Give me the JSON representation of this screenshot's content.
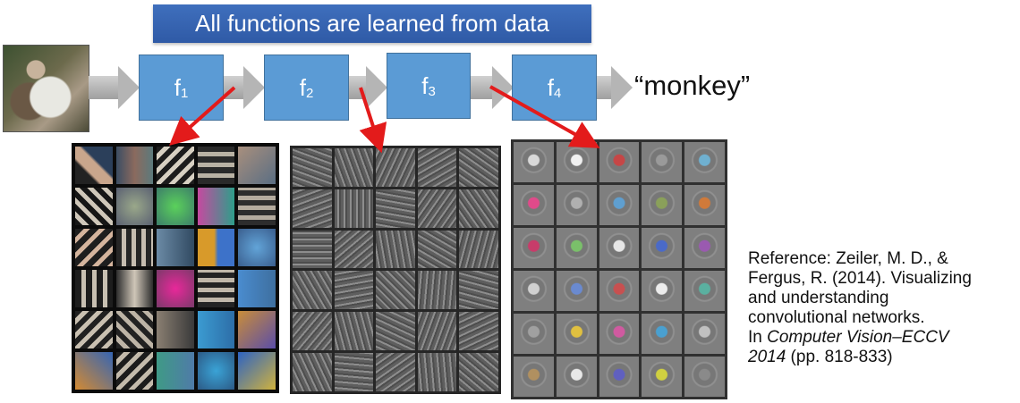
{
  "banner": {
    "text": "All functions are learned from data"
  },
  "pipeline": {
    "functions": [
      {
        "base": "f",
        "sub": "1"
      },
      {
        "base": "f",
        "sub": "2"
      },
      {
        "base": "f",
        "sub": "3"
      },
      {
        "base": "f",
        "sub": "4"
      }
    ],
    "output_label": "“monkey”"
  },
  "reference": {
    "line1": "Reference: Zeiler, M. D., &",
    "line2": "Fergus, R. (2014). Visualizing",
    "line3": "and understanding",
    "line4": "convolutional networks.",
    "line5_prefix": "In ",
    "line5_italic": "Computer Vision–ECCV",
    "line6_italic": "2014",
    "line6_suffix": " (pp. 818-833)"
  },
  "colors": {
    "banner": "#3465b4",
    "function_box": "#5b9bd5",
    "arrow_red": "#e31b1b",
    "flow_arrow": "#b5b5b5"
  },
  "icons": [
    "monkey-photo",
    "flow-arrow",
    "red-pointer-arrow"
  ]
}
